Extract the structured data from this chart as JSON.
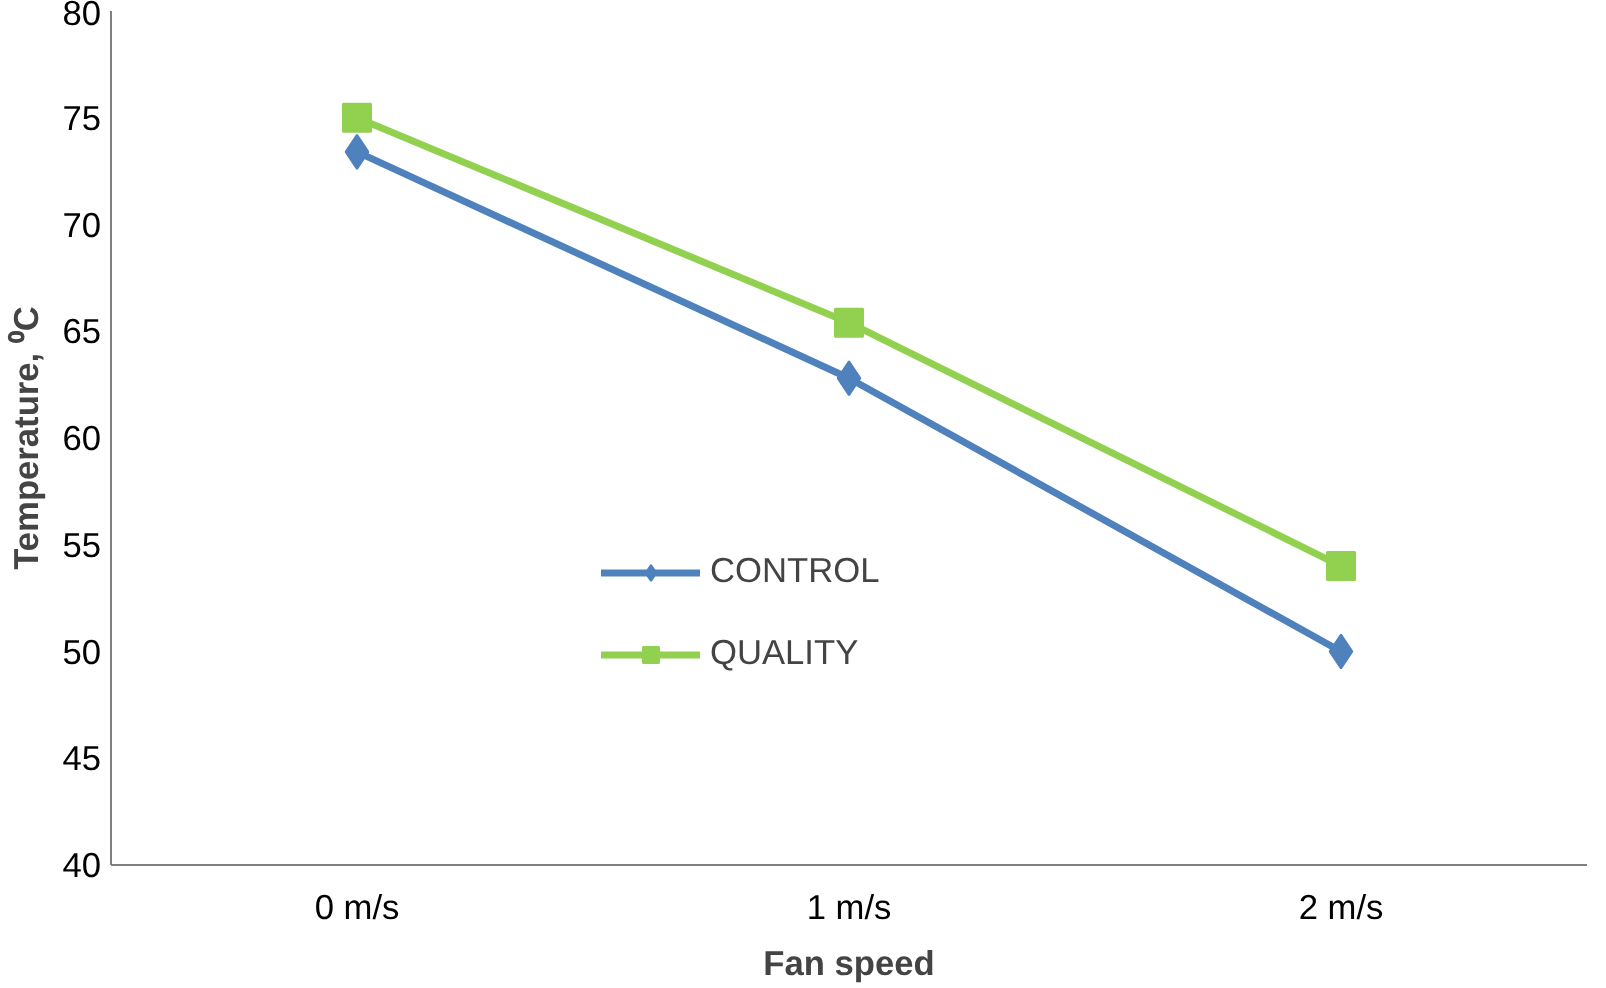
{
  "chart_data": {
    "type": "line",
    "xlabel": "Fan speed",
    "ylabel": "Temperature, ⁰C",
    "categories": [
      "0 m/s",
      "1 m/s",
      "2 m/s"
    ],
    "series": [
      {
        "name": "CONTROL",
        "color": "#4f81bd",
        "marker": "diamond",
        "values": [
          73.4,
          62.8,
          50
        ]
      },
      {
        "name": "QUALITY",
        "color": "#92d050",
        "marker": "square",
        "values": [
          75,
          65.4,
          54
        ]
      }
    ],
    "ylim": [
      40,
      80
    ],
    "yticks": [
      40,
      45,
      50,
      55,
      60,
      65,
      70,
      75,
      80
    ],
    "grid": false,
    "legend": "center",
    "line_style": "solid"
  }
}
